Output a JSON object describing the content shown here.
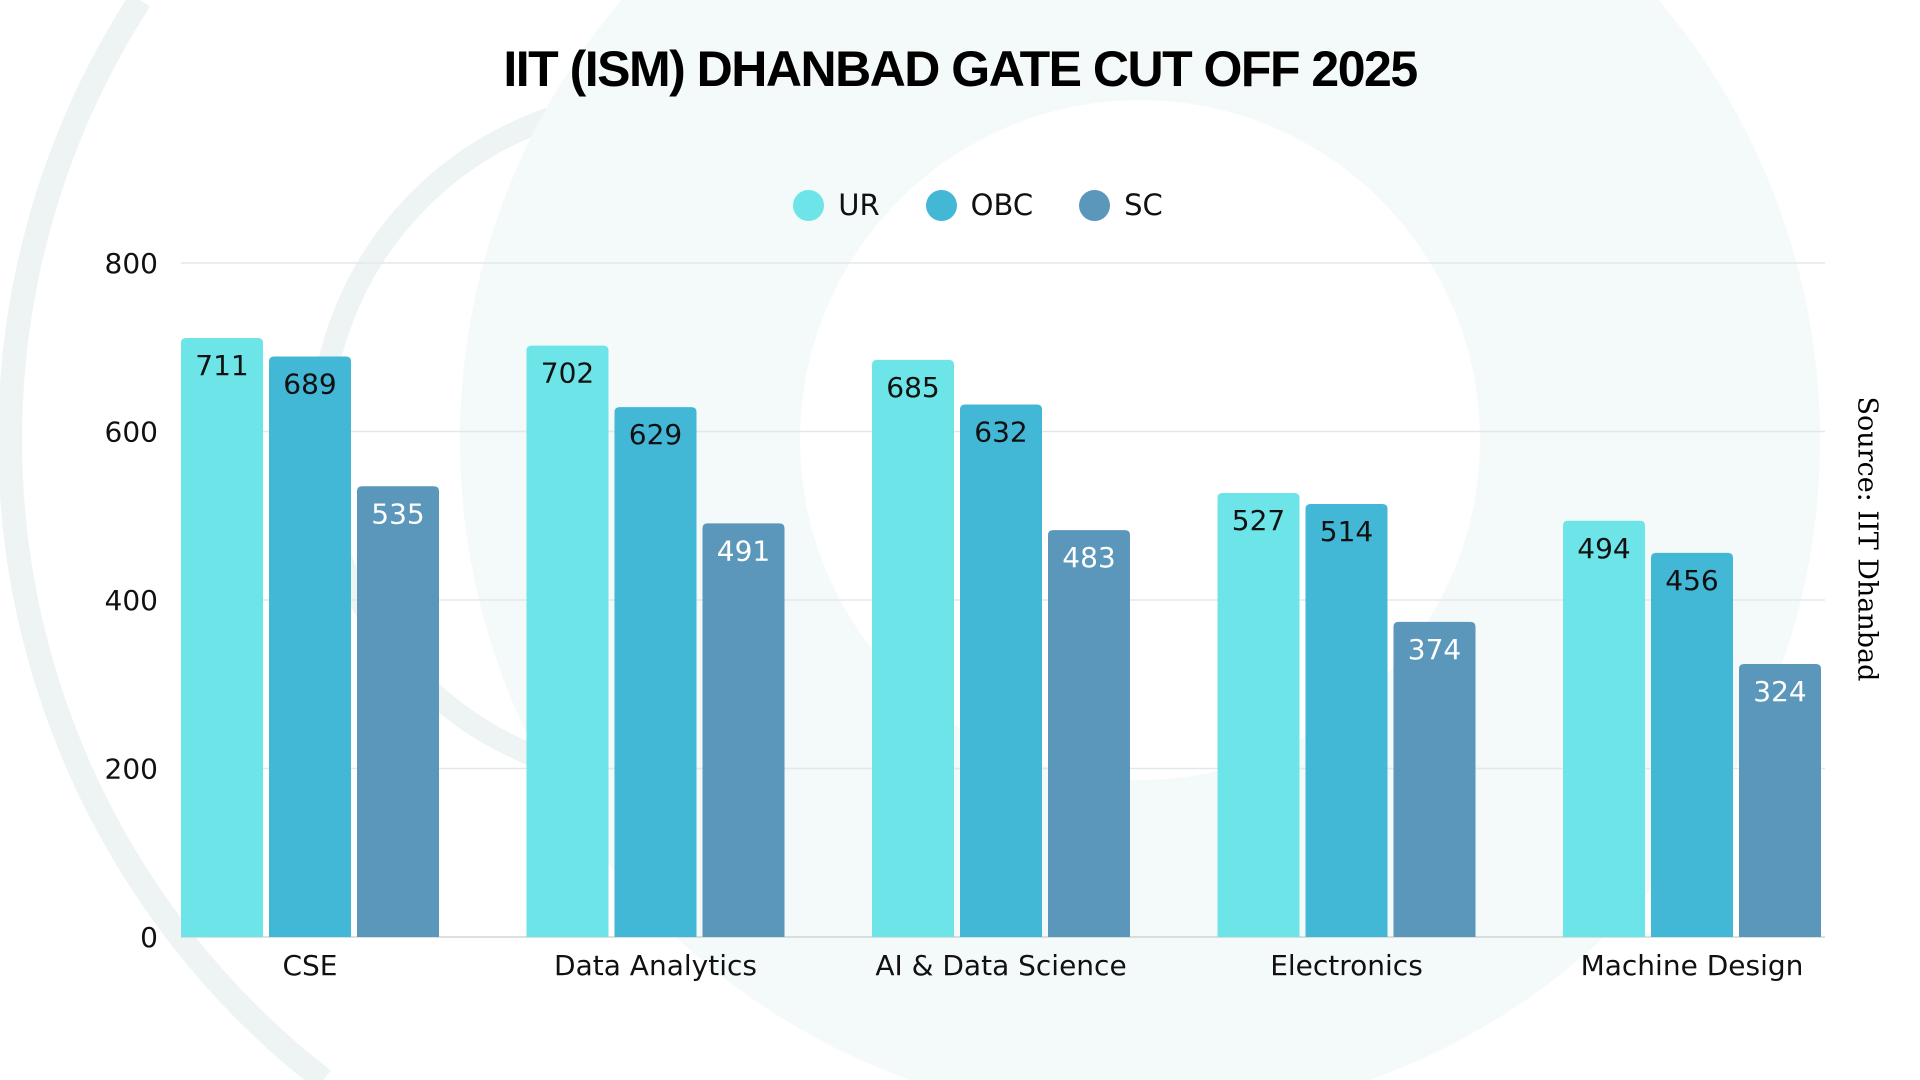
{
  "chart_data": {
    "type": "bar",
    "title": "IIT (ISM) DHANBAD GATE CUT OFF 2025",
    "categories": [
      "CSE",
      "Data Analytics",
      "AI & Data Science",
      "Electronics",
      "Machine Design"
    ],
    "series": [
      {
        "name": "UR",
        "color": "#6ce4e8",
        "label_color": "#111111",
        "values": [
          711,
          702,
          685,
          527,
          494
        ]
      },
      {
        "name": "OBC",
        "color": "#42b7d6",
        "label_color": "#111111",
        "values": [
          689,
          629,
          632,
          514,
          456
        ]
      },
      {
        "name": "SC",
        "color": "#5b96bb",
        "label_color": "#ffffff",
        "values": [
          535,
          491,
          483,
          374,
          324
        ]
      }
    ],
    "yticks": [
      "0",
      "200",
      "400",
      "600",
      "800"
    ],
    "ylim": [
      0,
      800
    ],
    "grid": true,
    "legend": "top-center",
    "source": "Source: IIT Dhanbad"
  }
}
